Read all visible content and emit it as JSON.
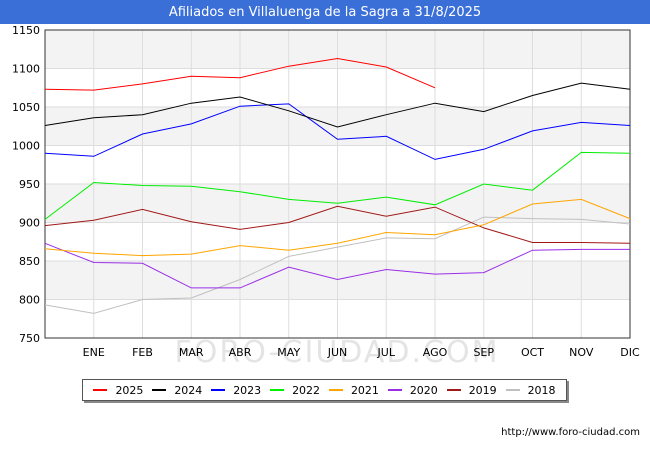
{
  "header": {
    "title": "Afiliados en Villaluenga de la Sagra a 31/8/2025"
  },
  "footer": {
    "source": "http://www.foro-ciudad.com"
  },
  "watermark": "FORO-CIUDAD.COM",
  "chart_data": {
    "type": "line",
    "title": "Afiliados en Villaluenga de la Sagra a 31/8/2025",
    "xlabel": "",
    "ylabel": "",
    "categories": [
      "",
      "ENE",
      "FEB",
      "MAR",
      "ABR",
      "MAY",
      "JUN",
      "JUL",
      "AGO",
      "SEP",
      "OCT",
      "NOV",
      "DIC"
    ],
    "ylim": [
      750,
      1150
    ],
    "yticks": [
      750,
      800,
      850,
      900,
      950,
      1000,
      1050,
      1100,
      1150
    ],
    "grid": true,
    "legend_position": "bottom",
    "series": [
      {
        "name": "2025",
        "color": "#ff0000",
        "values": [
          1073,
          1072,
          1080,
          1090,
          1088,
          1103,
          1113,
          1102,
          1075,
          null,
          null,
          null,
          null
        ]
      },
      {
        "name": "2024",
        "color": "#000000",
        "values": [
          1026,
          1036,
          1040,
          1055,
          1063,
          1045,
          1024,
          1040,
          1055,
          1044,
          1065,
          1081,
          1073
        ]
      },
      {
        "name": "2023",
        "color": "#0000ff",
        "values": [
          990,
          986,
          1015,
          1028,
          1051,
          1054,
          1008,
          1012,
          982,
          995,
          1019,
          1030,
          1026
        ]
      },
      {
        "name": "2022",
        "color": "#00ee00",
        "values": [
          904,
          952,
          948,
          947,
          940,
          930,
          925,
          933,
          923,
          950,
          942,
          991,
          990
        ]
      },
      {
        "name": "2021",
        "color": "#ffa500",
        "values": [
          866,
          860,
          857,
          859,
          870,
          864,
          873,
          887,
          884,
          897,
          924,
          930,
          905
        ]
      },
      {
        "name": "2020",
        "color": "#9a2ee6",
        "values": [
          873,
          848,
          847,
          815,
          815,
          842,
          826,
          839,
          833,
          835,
          864,
          865,
          865
        ]
      },
      {
        "name": "2019",
        "color": "#a01818",
        "values": [
          896,
          903,
          917,
          901,
          891,
          900,
          921,
          908,
          920,
          893,
          874,
          874,
          873
        ]
      },
      {
        "name": "2018",
        "color": "#c0c0c0",
        "values": [
          793,
          782,
          800,
          802,
          826,
          856,
          868,
          880,
          879,
          907,
          905,
          904,
          898
        ]
      }
    ]
  }
}
